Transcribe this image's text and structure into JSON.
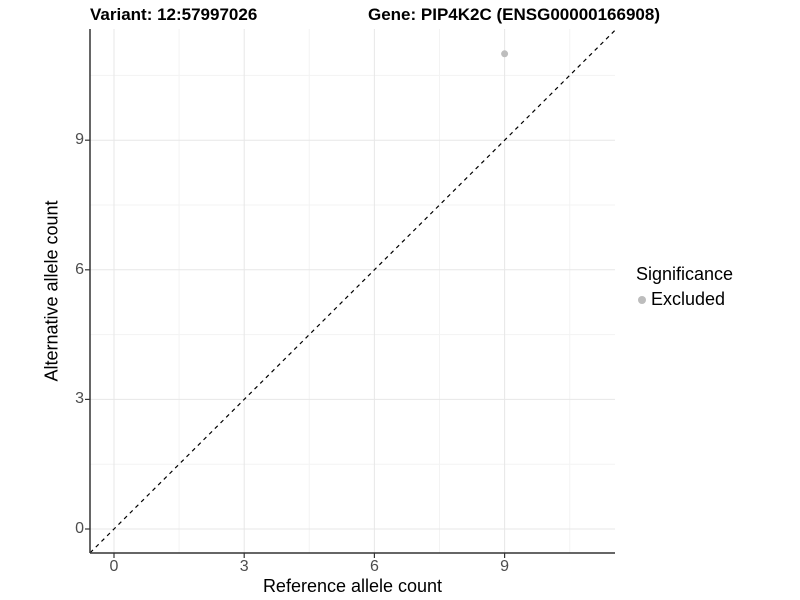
{
  "titles": {
    "variant": "Variant: 12:57997026",
    "gene": "Gene: PIP4K2C (ENSG00000166908)"
  },
  "axes": {
    "x_label": "Reference allele count",
    "y_label": "Alternative allele count"
  },
  "legend": {
    "title": "Significance",
    "items": [
      {
        "label": "Excluded",
        "color": "#bdbdbd"
      }
    ]
  },
  "colors": {
    "major_grid": "#e7e7e7",
    "minor_grid": "#f3f3f3",
    "axis_line": "#333333",
    "tick_mark": "#333333",
    "tick_label": "#4d4d4d",
    "reference_line": "#000000",
    "point": "#bdbdbd"
  },
  "chart_data": {
    "type": "scatter",
    "title": "Variant: 12:57997026   Gene: PIP4K2C (ENSG00000166908)",
    "xlabel": "Reference allele count",
    "ylabel": "Alternative allele count",
    "xlim": [
      -0.55,
      11.55
    ],
    "ylim": [
      -0.55,
      11.55
    ],
    "x_ticks": [
      0,
      3,
      6,
      9
    ],
    "y_ticks": [
      0,
      3,
      6,
      9
    ],
    "x_minor_ticks": [
      1.5,
      4.5,
      7.5,
      10.5
    ],
    "y_minor_ticks": [
      1.5,
      4.5,
      7.5,
      10.5
    ],
    "grid": true,
    "legend_position": "right",
    "series": [
      {
        "name": "Excluded",
        "color": "#bdbdbd",
        "points": [
          {
            "x": 9,
            "y": 11
          }
        ]
      }
    ],
    "reference_line": {
      "equation": "y = x",
      "style": "dashed",
      "color": "#000000",
      "from": [
        -0.55,
        -0.55
      ],
      "to": [
        11.55,
        11.55
      ]
    }
  }
}
